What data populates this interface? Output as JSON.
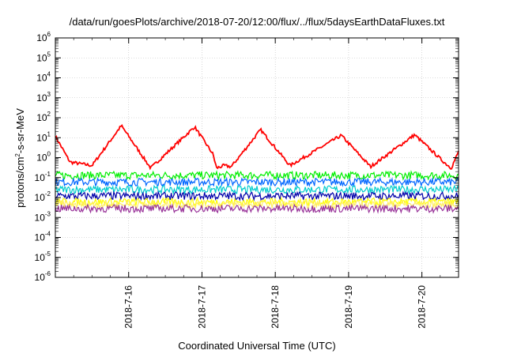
{
  "chart_data": {
    "type": "line",
    "title": "/data/run/goesPlots/archive/2018-07-20/12:00/flux/../flux/5daysEarthDataFluxes.txt",
    "xlabel": "Coordinated Universal Time (UTC)",
    "ylabel": "protons/cm²-s-sr-MeV",
    "ylabel_parts": {
      "pre": "protons/cm",
      "sup": "2",
      "post": "-s-sr-MeV"
    },
    "yscale": "log",
    "ylim_exponents": [
      -6,
      6
    ],
    "y_tick_labels": [
      {
        "base": "10",
        "exp": "-6"
      },
      {
        "base": "10",
        "exp": "-5"
      },
      {
        "base": "10",
        "exp": "-4"
      },
      {
        "base": "10",
        "exp": "-3"
      },
      {
        "base": "10",
        "exp": "-2"
      },
      {
        "base": "10",
        "exp": "-1"
      },
      {
        "base": "10",
        "exp": "0"
      },
      {
        "base": "10",
        "exp": "1"
      },
      {
        "base": "10",
        "exp": "2"
      },
      {
        "base": "10",
        "exp": "3"
      },
      {
        "base": "10",
        "exp": "4"
      },
      {
        "base": "10",
        "exp": "5"
      },
      {
        "base": "10",
        "exp": "6"
      }
    ],
    "x_tick_labels": [
      "2018-7-16",
      "2018-7-17",
      "2018-7-18",
      "2018-7-19",
      "2018-7-20"
    ],
    "xlim_days": [
      15.0,
      20.5
    ],
    "grid": true,
    "legend": "none",
    "series": [
      {
        "color": "#ff0000",
        "x": [
          15.0,
          15.2,
          15.5,
          15.9,
          16.3,
          16.9,
          17.15,
          17.2,
          17.3,
          17.4,
          17.8,
          18.2,
          18.9,
          19.3,
          19.9,
          20.3,
          20.4,
          20.5
        ],
        "y": [
          12,
          0.6,
          0.4,
          40,
          0.3,
          35,
          1.5,
          0.3,
          0.4,
          0.35,
          25,
          0.4,
          13,
          0.35,
          14,
          0.6,
          0.3,
          2.0
        ]
      },
      {
        "color": "#00ee00",
        "x": [
          15.0,
          20.5
        ],
        "y": [
          0.13,
          0.13
        ]
      },
      {
        "color": "#0066ff",
        "x": [
          15.0,
          20.5
        ],
        "y": [
          0.06,
          0.06
        ]
      },
      {
        "color": "#00cccc",
        "x": [
          15.0,
          20.5
        ],
        "y": [
          0.025,
          0.025
        ]
      },
      {
        "color": "#0000aa",
        "x": [
          15.0,
          20.5
        ],
        "y": [
          0.012,
          0.012
        ]
      },
      {
        "color": "#ffff00",
        "x": [
          15.0,
          20.5
        ],
        "y": [
          0.006,
          0.006
        ]
      },
      {
        "color": "#ffee66",
        "x": [
          15.0,
          20.5
        ],
        "y": [
          0.0045,
          0.0045
        ]
      },
      {
        "color": "#993399",
        "x": [
          15.0,
          20.5
        ],
        "y": [
          0.0028,
          0.0028
        ]
      }
    ]
  }
}
